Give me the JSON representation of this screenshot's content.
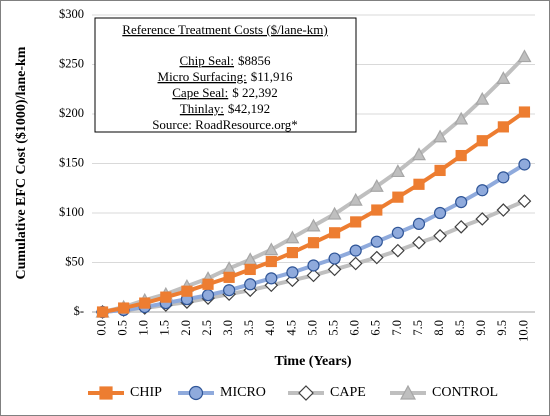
{
  "chart_data": {
    "type": "line",
    "y_label": "Cumulative EFC Cost ($1000)/lane-km",
    "x_label": "Time (Years)",
    "categories": [
      "0.0",
      "0.5",
      "1.0",
      "1.5",
      "2.0",
      "2.5",
      "3.0",
      "3.5",
      "4.0",
      "4.5",
      "5.0",
      "5.5",
      "6.0",
      "6.5",
      "7.0",
      "7.5",
      "8.0",
      "8.5",
      "9.0",
      "9.5",
      "10.0"
    ],
    "series": [
      {
        "name": "CHIP",
        "color": "#ed7d31",
        "marker": "square",
        "values": [
          0,
          4,
          9,
          15,
          21,
          28,
          35,
          43,
          51,
          60,
          70,
          80,
          91,
          103,
          116,
          129,
          143,
          158,
          173,
          187,
          202
        ]
      },
      {
        "name": "MICRO",
        "color": "#8faadc",
        "marker": "circle",
        "values": [
          0,
          2,
          5,
          9,
          13,
          17,
          22,
          28,
          34,
          40,
          47,
          54,
          62,
          71,
          80,
          89,
          100,
          111,
          123,
          136,
          149
        ]
      },
      {
        "name": "CAPE",
        "color": "#bfbfbf",
        "marker": "diamond",
        "values": [
          0,
          2,
          4,
          7,
          10,
          14,
          18,
          22,
          27,
          32,
          37,
          43,
          49,
          55,
          62,
          70,
          77,
          86,
          94,
          103,
          112
        ]
      },
      {
        "name": "CONTROL",
        "color": "#bfbfbf",
        "marker": "triangle",
        "values": [
          0,
          5,
          12,
          18,
          26,
          34,
          44,
          53,
          63,
          75,
          87,
          99,
          113,
          127,
          142,
          159,
          177,
          195,
          215,
          236,
          258
        ]
      }
    ],
    "ylim": [
      0,
      300
    ],
    "yticks": [
      {
        "value": 0,
        "label": "$-"
      },
      {
        "value": 50,
        "label": "$50"
      },
      {
        "value": 100,
        "label": "$100"
      },
      {
        "value": 150,
        "label": "$150"
      },
      {
        "value": 200,
        "label": "$200"
      },
      {
        "value": 250,
        "label": "$250"
      },
      {
        "value": 300,
        "label": "$300"
      }
    ],
    "grid": true,
    "legend": "bottom",
    "annotation": {
      "title": "Reference Treatment Costs ($/lane-km)",
      "lines": [
        {
          "label": "Chip Seal:",
          "value": "$8856"
        },
        {
          "label": "Micro Surfacing:",
          "value": "$11,916"
        },
        {
          "label": "Cape Seal:",
          "value": "$ 22,392"
        },
        {
          "label": "Thinlay:",
          "value": "$42,192"
        }
      ],
      "source": "Source: RoadResource.org*"
    }
  }
}
